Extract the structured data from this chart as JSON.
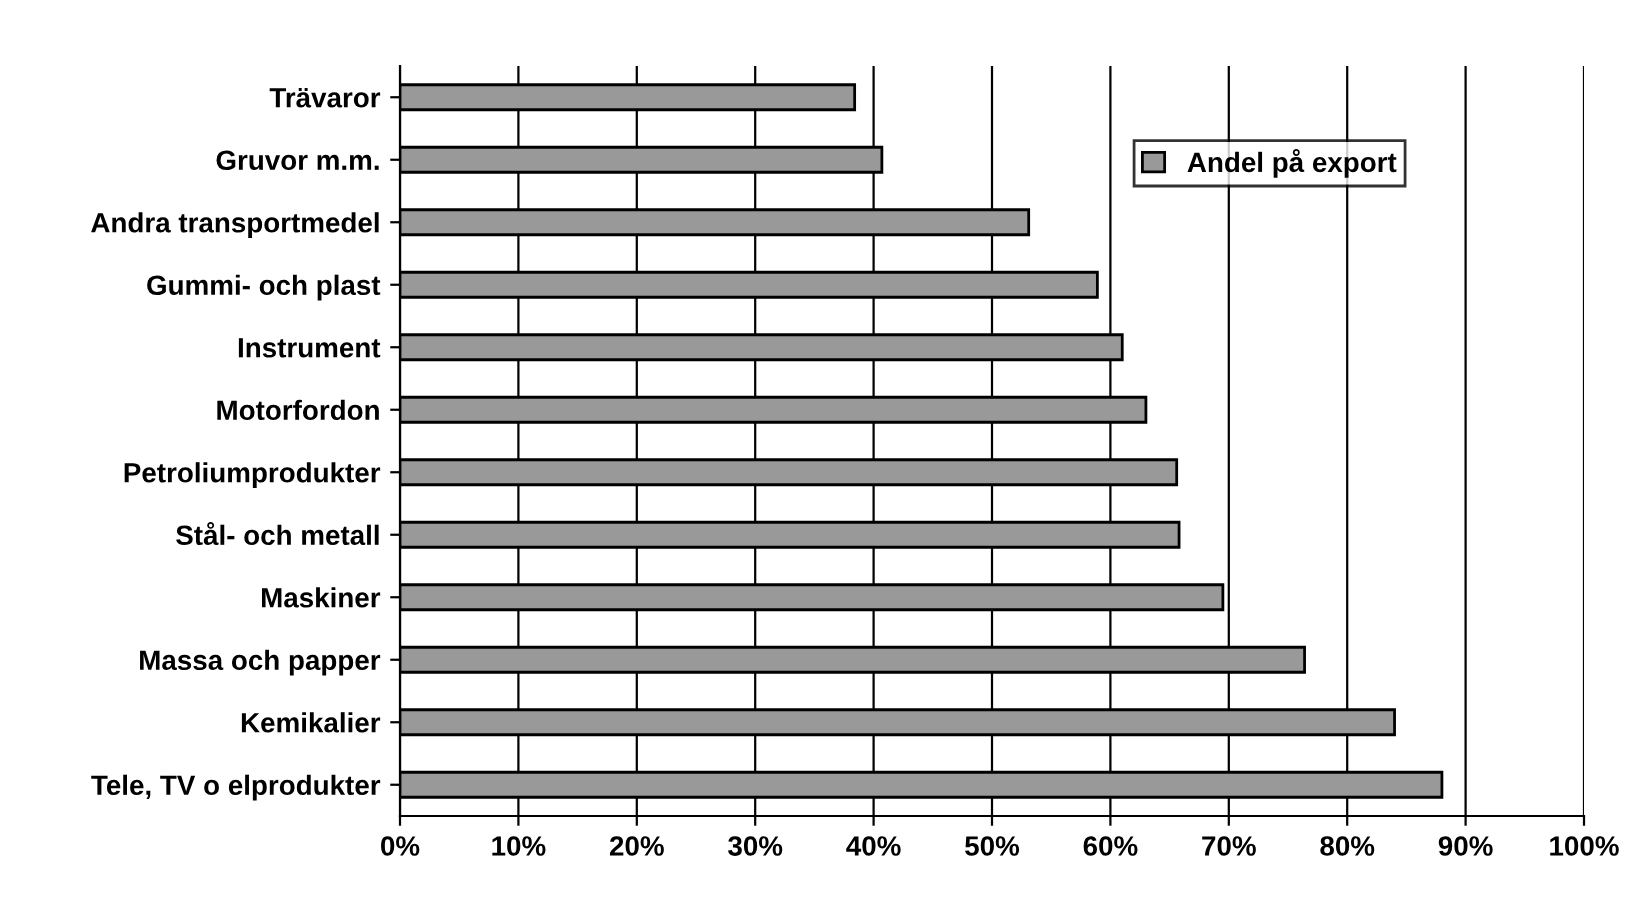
{
  "chart_data": {
    "type": "bar",
    "orientation": "horizontal",
    "categories": [
      "Trävaror",
      "Gruvor m.m.",
      "Andra transportmedel",
      "Gummi- och plast",
      "Instrument",
      "Motorfordon",
      "Petroliumprodukter",
      "Stål- och metall",
      "Maskiner",
      "Massa och papper",
      "Kemikalier",
      "Tele, TV o elprodukter"
    ],
    "series": [
      {
        "name": "Andel på export",
        "color": "#999999",
        "values": [
          38.4,
          40.7,
          53.1,
          58.9,
          61,
          63,
          65.6,
          65.8,
          69.5,
          76.4,
          84.0,
          88.0
        ]
      }
    ],
    "xlim": [
      0,
      100
    ],
    "xticks": [
      {
        "value": 0,
        "label": "0%"
      },
      {
        "value": 10,
        "label": "10%"
      },
      {
        "value": 20,
        "label": "20%"
      },
      {
        "value": 30,
        "label": "30%"
      },
      {
        "value": 40,
        "label": "40%"
      },
      {
        "value": 50,
        "label": "50%"
      },
      {
        "value": 60,
        "label": "60%"
      },
      {
        "value": 70,
        "label": "70%"
      },
      {
        "value": 80,
        "label": "80%"
      },
      {
        "value": 90,
        "label": "90%"
      },
      {
        "value": 100,
        "label": "100%"
      }
    ],
    "grid": "x",
    "legend": "top right"
  }
}
